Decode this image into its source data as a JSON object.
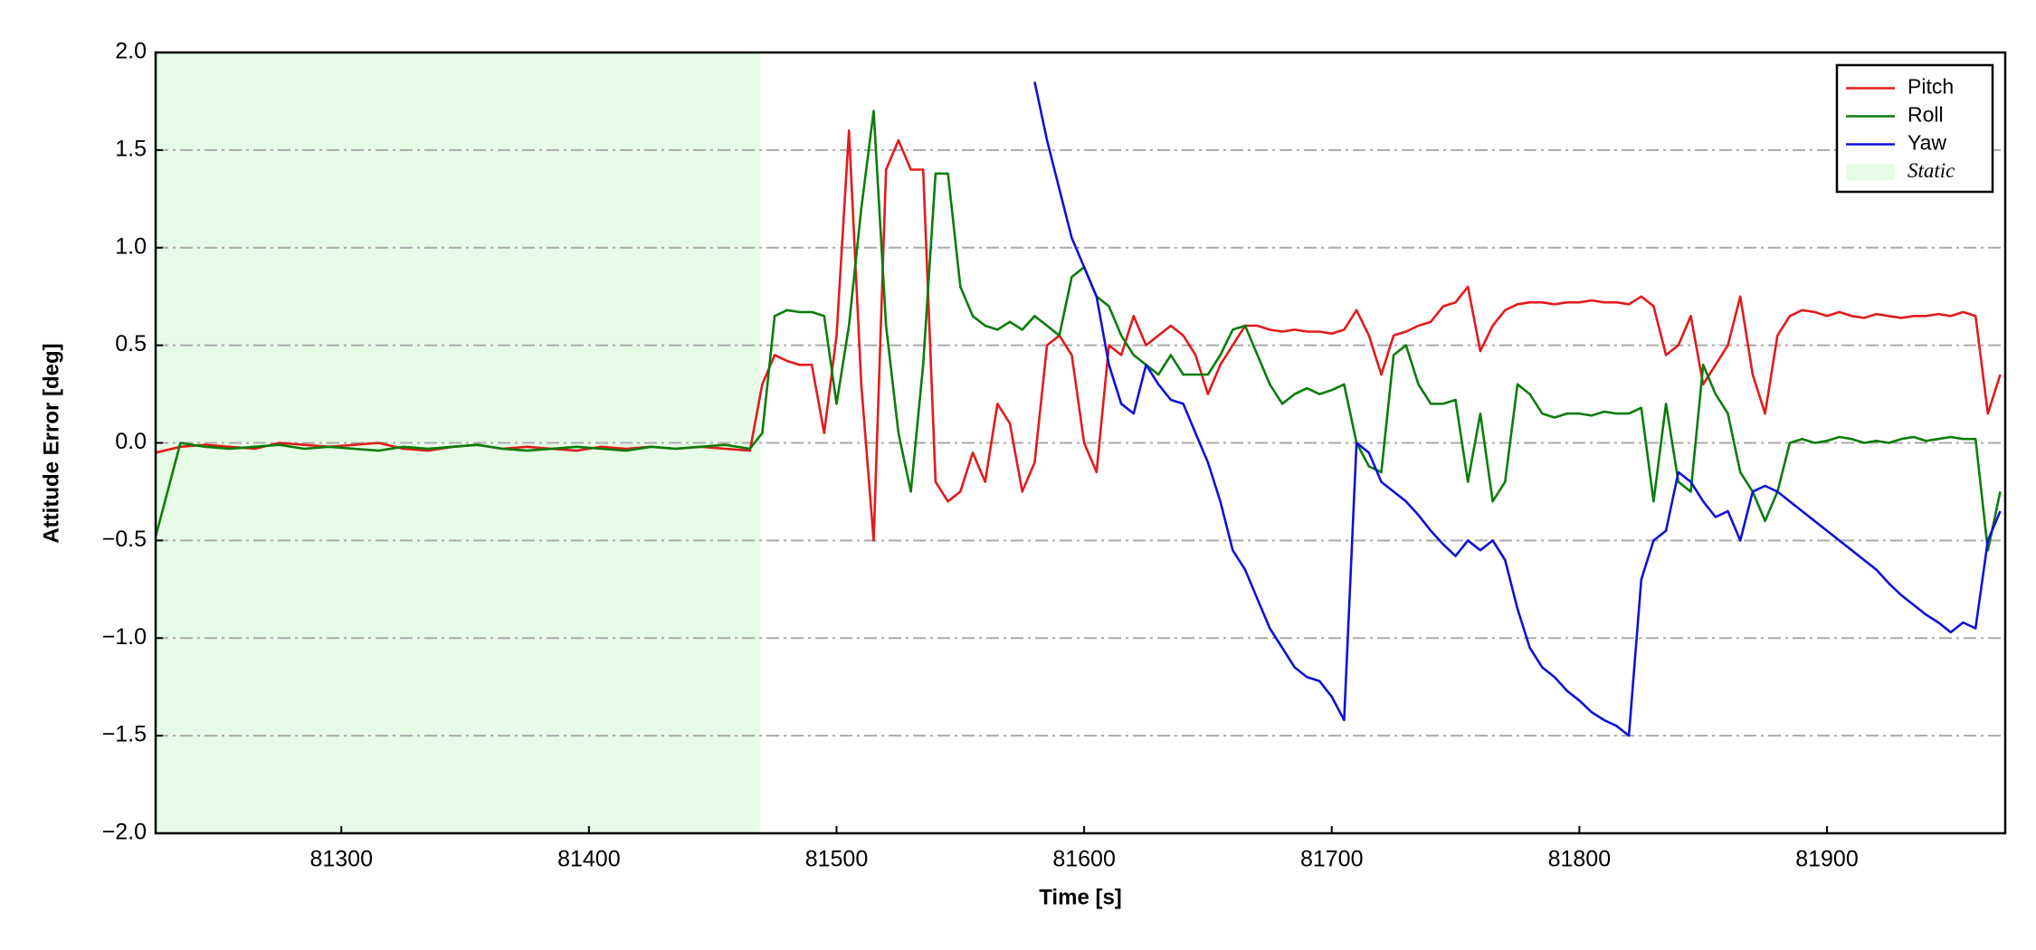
{
  "chart_data": {
    "type": "line",
    "xlabel": "Time [s]",
    "ylabel": "Attitude Error [deg]",
    "xlim": [
      81225,
      81972
    ],
    "ylim": [
      -2.0,
      2.0
    ],
    "xticks": [
      81300,
      81400,
      81500,
      81600,
      81700,
      81800,
      81900
    ],
    "yticks": [
      {
        "value": -2.0,
        "label": "−2.0"
      },
      {
        "value": -1.5,
        "label": "−1.5"
      },
      {
        "value": -1.0,
        "label": "−1.0"
      },
      {
        "value": -0.5,
        "label": "−0.5"
      },
      {
        "value": 0.0,
        "label": "0.0"
      },
      {
        "value": 0.5,
        "label": "0.5"
      },
      {
        "value": 1.0,
        "label": "1.0"
      },
      {
        "value": 1.5,
        "label": "1.5"
      },
      {
        "value": 2.0,
        "label": "2.0"
      }
    ],
    "grid": true,
    "legend": "upper right",
    "spans": [
      {
        "name": "Static",
        "color": "#e6fce6",
        "start": 81225,
        "end": 81469
      }
    ],
    "x": [
      81225,
      81235,
      81245,
      81255,
      81265,
      81275,
      81285,
      81295,
      81305,
      81315,
      81325,
      81335,
      81345,
      81355,
      81365,
      81375,
      81385,
      81395,
      81405,
      81415,
      81425,
      81435,
      81445,
      81455,
      81465,
      81470,
      81475,
      81480,
      81485,
      81490,
      81495,
      81500,
      81505,
      81510,
      81515,
      81520,
      81525,
      81530,
      81535,
      81540,
      81545,
      81550,
      81555,
      81560,
      81565,
      81570,
      81575,
      81580,
      81585,
      81590,
      81595,
      81600,
      81605,
      81610,
      81615,
      81620,
      81625,
      81630,
      81635,
      81640,
      81645,
      81650,
      81655,
      81660,
      81665,
      81670,
      81675,
      81680,
      81685,
      81690,
      81695,
      81700,
      81705,
      81710,
      81715,
      81720,
      81725,
      81730,
      81735,
      81740,
      81745,
      81750,
      81755,
      81760,
      81765,
      81770,
      81775,
      81780,
      81785,
      81790,
      81795,
      81800,
      81805,
      81810,
      81815,
      81820,
      81825,
      81830,
      81835,
      81840,
      81845,
      81850,
      81855,
      81860,
      81865,
      81870,
      81875,
      81880,
      81885,
      81890,
      81895,
      81900,
      81905,
      81910,
      81915,
      81920,
      81925,
      81930,
      81935,
      81940,
      81945,
      81950,
      81955,
      81960,
      81965,
      81970
    ],
    "series": [
      {
        "name": "Pitch",
        "color": "#e31a1c",
        "values": [
          -0.05,
          -0.02,
          -0.01,
          -0.02,
          -0.03,
          0.0,
          -0.01,
          -0.02,
          -0.01,
          0.0,
          -0.03,
          -0.04,
          -0.02,
          -0.01,
          -0.03,
          -0.02,
          -0.03,
          -0.04,
          -0.02,
          -0.03,
          -0.02,
          -0.03,
          -0.02,
          -0.03,
          -0.04,
          0.3,
          0.45,
          0.42,
          0.4,
          0.4,
          0.05,
          0.55,
          1.6,
          0.3,
          -0.5,
          1.4,
          1.55,
          1.4,
          1.4,
          -0.2,
          -0.3,
          -0.25,
          -0.05,
          -0.2,
          0.2,
          0.1,
          -0.25,
          -0.1,
          0.5,
          0.55,
          0.45,
          0.0,
          -0.15,
          0.5,
          0.45,
          0.65,
          0.5,
          0.55,
          0.6,
          0.55,
          0.45,
          0.25,
          0.4,
          0.5,
          0.6,
          0.6,
          0.58,
          0.57,
          0.58,
          0.57,
          0.57,
          0.56,
          0.58,
          0.68,
          0.55,
          0.35,
          0.55,
          0.57,
          0.6,
          0.62,
          0.7,
          0.72,
          0.8,
          0.47,
          0.6,
          0.68,
          0.71,
          0.72,
          0.72,
          0.71,
          0.72,
          0.72,
          0.73,
          0.72,
          0.72,
          0.71,
          0.75,
          0.7,
          0.45,
          0.5,
          0.65,
          0.3,
          0.4,
          0.5,
          0.75,
          0.35,
          0.15,
          0.55,
          0.65,
          0.68,
          0.67,
          0.65,
          0.67,
          0.65,
          0.64,
          0.66,
          0.65,
          0.64,
          0.65,
          0.65,
          0.66,
          0.65,
          0.67,
          0.65,
          0.15,
          0.35
        ]
      },
      {
        "name": "Roll",
        "color": "#0a7d0a",
        "values": [
          -0.48,
          0.0,
          -0.02,
          -0.03,
          -0.02,
          -0.01,
          -0.03,
          -0.02,
          -0.03,
          -0.04,
          -0.02,
          -0.03,
          -0.02,
          -0.01,
          -0.03,
          -0.04,
          -0.03,
          -0.02,
          -0.03,
          -0.04,
          -0.02,
          -0.03,
          -0.02,
          -0.01,
          -0.03,
          0.05,
          0.65,
          0.68,
          0.67,
          0.67,
          0.65,
          0.2,
          0.6,
          1.2,
          1.7,
          0.6,
          0.05,
          -0.25,
          0.4,
          1.38,
          1.38,
          0.8,
          0.65,
          0.6,
          0.58,
          0.62,
          0.58,
          0.65,
          0.6,
          0.55,
          0.85,
          0.9,
          0.75,
          0.7,
          0.55,
          0.45,
          0.4,
          0.35,
          0.45,
          0.35,
          0.35,
          0.35,
          0.45,
          0.58,
          0.6,
          0.45,
          0.3,
          0.2,
          0.25,
          0.28,
          0.25,
          0.27,
          0.3,
          0.0,
          -0.12,
          -0.15,
          0.45,
          0.5,
          0.3,
          0.2,
          0.2,
          0.22,
          -0.2,
          0.15,
          -0.3,
          -0.2,
          0.3,
          0.25,
          0.15,
          0.13,
          0.15,
          0.15,
          0.14,
          0.16,
          0.15,
          0.15,
          0.18,
          -0.3,
          0.2,
          -0.2,
          -0.25,
          0.4,
          0.25,
          0.15,
          -0.15,
          -0.25,
          -0.4,
          -0.25,
          0.0,
          0.02,
          0.0,
          0.01,
          0.03,
          0.02,
          0.0,
          0.01,
          0.0,
          0.02,
          0.03,
          0.01,
          0.02,
          0.03,
          0.02,
          0.02,
          -0.55,
          -0.25
        ]
      },
      {
        "name": "Yaw",
        "color": "#1010d8",
        "values": [
          null,
          null,
          null,
          null,
          null,
          null,
          null,
          null,
          null,
          null,
          null,
          null,
          null,
          null,
          null,
          null,
          null,
          null,
          null,
          null,
          null,
          null,
          null,
          null,
          null,
          null,
          null,
          null,
          null,
          null,
          null,
          null,
          null,
          null,
          null,
          null,
          null,
          null,
          null,
          null,
          null,
          null,
          null,
          null,
          null,
          null,
          null,
          1.85,
          1.55,
          1.3,
          1.05,
          0.9,
          0.75,
          0.4,
          0.2,
          0.15,
          0.4,
          0.3,
          0.22,
          0.2,
          0.05,
          -0.1,
          -0.3,
          -0.55,
          -0.65,
          -0.8,
          -0.95,
          -1.05,
          -1.15,
          -1.2,
          -1.22,
          -1.3,
          -1.42,
          0.0,
          -0.05,
          -0.2,
          -0.25,
          -0.3,
          -0.37,
          -0.45,
          -0.52,
          -0.58,
          -0.5,
          -0.55,
          -0.5,
          -0.6,
          -0.85,
          -1.05,
          -1.15,
          -1.2,
          -1.27,
          -1.32,
          -1.38,
          -1.42,
          -1.45,
          -1.5,
          -0.7,
          -0.5,
          -0.45,
          -0.15,
          -0.2,
          -0.3,
          -0.38,
          -0.35,
          -0.5,
          -0.25,
          -0.22,
          -0.25,
          -0.3,
          -0.35,
          -0.4,
          -0.45,
          -0.5,
          -0.55,
          -0.6,
          -0.65,
          -0.72,
          -0.78,
          -0.83,
          -0.88,
          -0.92,
          -0.97,
          -0.92,
          -0.95,
          -0.5,
          -0.35
        ]
      }
    ]
  }
}
